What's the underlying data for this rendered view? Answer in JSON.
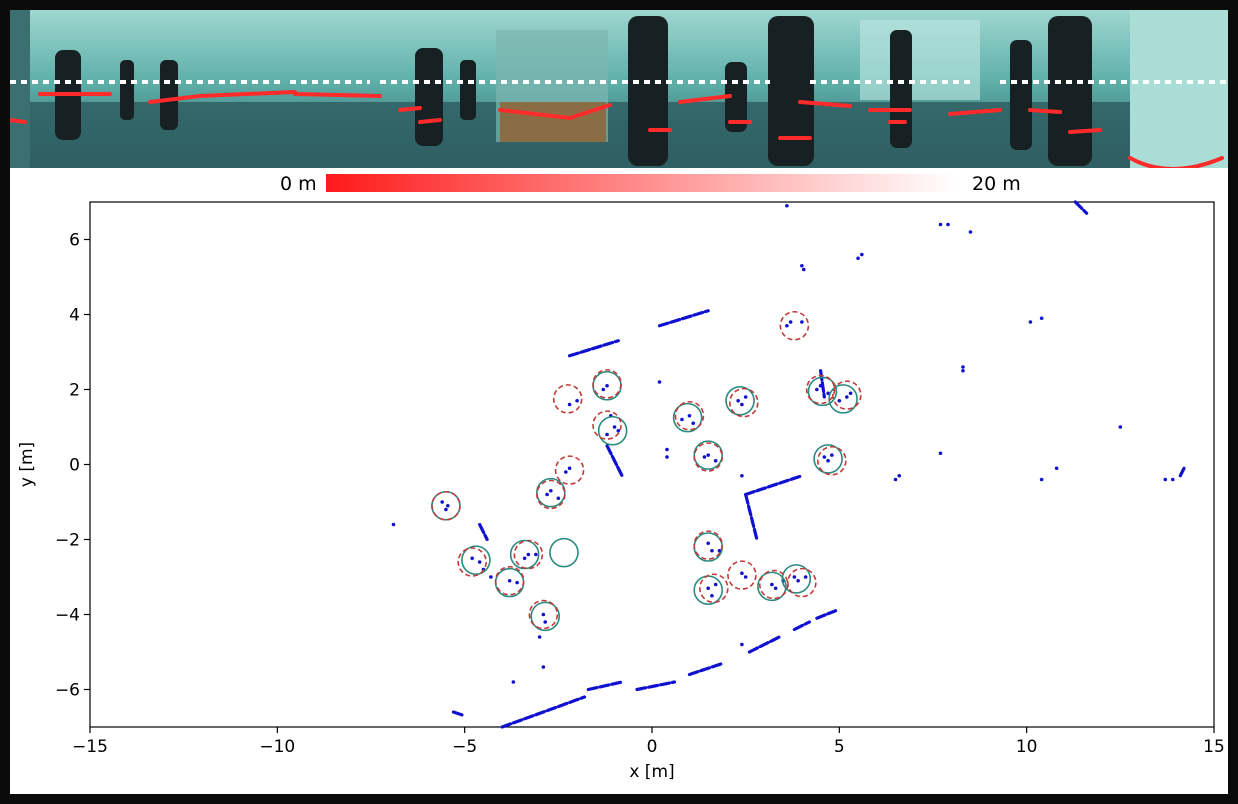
{
  "colorbar": {
    "min_label": "0 m",
    "max_label": "20 m",
    "color_near": "#ff1a1a",
    "color_far": "#ffffff"
  },
  "panorama": {
    "palette": {
      "sky": "#5fb3ad",
      "floor": "#2f6a6c",
      "person": "#1a1f22",
      "laser": "#ff2a2a",
      "dots": "#ffffff"
    },
    "icons": [
      "people",
      "laser-scan-overlay",
      "white-dot-line"
    ]
  },
  "chart_data": {
    "type": "scatter",
    "xlabel": "x [m]",
    "ylabel": "y [m]",
    "xlim": [
      -15,
      15
    ],
    "ylim": [
      -7,
      7
    ],
    "xticks": [
      -15,
      -10,
      -5,
      0,
      5,
      10,
      15
    ],
    "yticks": [
      -6,
      -4,
      -2,
      0,
      2,
      4,
      6
    ],
    "xtick_labels": [
      "−15",
      "−10",
      "−5",
      "0",
      "5",
      "10",
      "15"
    ],
    "ytick_labels": [
      "−6",
      "−4",
      "−2",
      "0",
      "2",
      "4",
      "6"
    ],
    "grid": false,
    "colors": {
      "points": "#1010d0",
      "detection": "#c23a3a",
      "track": "#2a8a80"
    },
    "point_segments": [
      [
        [
          -2.2,
          2.9
        ],
        [
          -0.9,
          3.3
        ]
      ],
      [
        [
          0.2,
          3.7
        ],
        [
          1.5,
          4.1
        ]
      ],
      [
        [
          -4.0,
          -7.0
        ],
        [
          -1.8,
          -6.2
        ]
      ],
      [
        [
          -1.7,
          -6.0
        ],
        [
          -0.8,
          -5.8
        ]
      ],
      [
        [
          -0.4,
          -6.0
        ],
        [
          0.6,
          -5.8
        ]
      ],
      [
        [
          1.0,
          -5.6
        ],
        [
          1.9,
          -5.3
        ]
      ],
      [
        [
          2.6,
          -5.0
        ],
        [
          3.4,
          -4.6
        ]
      ],
      [
        [
          3.8,
          -4.4
        ],
        [
          4.2,
          -4.2
        ]
      ],
      [
        [
          4.4,
          -4.1
        ],
        [
          4.9,
          -3.9
        ]
      ],
      [
        [
          2.5,
          -0.8
        ],
        [
          4.0,
          -0.3
        ]
      ],
      [
        [
          2.5,
          -0.8
        ],
        [
          2.8,
          -2.0
        ]
      ],
      [
        [
          -1.2,
          0.5
        ],
        [
          -0.8,
          -0.3
        ]
      ],
      [
        [
          4.5,
          2.5
        ],
        [
          4.6,
          1.8
        ]
      ],
      [
        [
          11.3,
          7.0
        ],
        [
          11.6,
          6.7
        ]
      ],
      [
        [
          14.1,
          -0.3
        ],
        [
          14.2,
          -0.1
        ]
      ],
      [
        [
          -5.3,
          -6.6
        ],
        [
          -5.0,
          -6.7
        ]
      ],
      [
        [
          -4.6,
          -1.6
        ],
        [
          -4.4,
          -2.0
        ]
      ]
    ],
    "points": [
      [
        -6.9,
        -1.6
      ],
      [
        -5.6,
        -1.0
      ],
      [
        -5.5,
        -1.2
      ],
      [
        -5.45,
        -1.1
      ],
      [
        -4.8,
        -2.5
      ],
      [
        -4.6,
        -2.6
      ],
      [
        -4.5,
        -2.8
      ],
      [
        -4.3,
        -3.0
      ],
      [
        -3.8,
        -3.1
      ],
      [
        -3.6,
        -3.15
      ],
      [
        -3.3,
        -2.4
      ],
      [
        -3.4,
        -2.5
      ],
      [
        -3.1,
        -2.4
      ],
      [
        -2.9,
        -4.0
      ],
      [
        -2.85,
        -4.2
      ],
      [
        -3.0,
        -4.6
      ],
      [
        -2.9,
        -5.4
      ],
      [
        -3.7,
        -5.8
      ],
      [
        -2.7,
        -0.7
      ],
      [
        -2.8,
        -0.8
      ],
      [
        -2.5,
        -0.9
      ],
      [
        -2.3,
        -0.2
      ],
      [
        -2.2,
        -0.1
      ],
      [
        -2.2,
        1.6
      ],
      [
        -2.0,
        1.7
      ],
      [
        -1.2,
        2.1
      ],
      [
        -1.3,
        2.0
      ],
      [
        -1.1,
        1.3
      ],
      [
        -1.0,
        1.0
      ],
      [
        -0.9,
        0.9
      ],
      [
        -1.2,
        0.8
      ],
      [
        0.2,
        2.2
      ],
      [
        0.4,
        0.4
      ],
      [
        0.4,
        0.2
      ],
      [
        0.8,
        1.2
      ],
      [
        1.0,
        1.3
      ],
      [
        1.1,
        1.1
      ],
      [
        1.4,
        0.2
      ],
      [
        1.5,
        0.25
      ],
      [
        1.7,
        0.1
      ],
      [
        2.3,
        1.7
      ],
      [
        2.4,
        1.6
      ],
      [
        2.5,
        1.8
      ],
      [
        2.4,
        -0.3
      ],
      [
        1.5,
        -2.1
      ],
      [
        1.6,
        -2.3
      ],
      [
        1.8,
        -2.3
      ],
      [
        1.5,
        -3.3
      ],
      [
        1.6,
        -3.5
      ],
      [
        1.7,
        -3.2
      ],
      [
        2.4,
        -2.9
      ],
      [
        2.5,
        -3.0
      ],
      [
        2.4,
        -4.8
      ],
      [
        3.2,
        -3.2
      ],
      [
        3.3,
        -3.3
      ],
      [
        3.5,
        -3.1
      ],
      [
        3.8,
        -3.0
      ],
      [
        3.9,
        -3.1
      ],
      [
        4.1,
        -3.0
      ],
      [
        3.6,
        3.7
      ],
      [
        3.7,
        3.8
      ],
      [
        4.0,
        3.8
      ],
      [
        3.6,
        6.9
      ],
      [
        4.0,
        5.3
      ],
      [
        4.05,
        5.2
      ],
      [
        4.4,
        2.0
      ],
      [
        4.5,
        2.1
      ],
      [
        4.7,
        1.9
      ],
      [
        4.6,
        0.2
      ],
      [
        4.7,
        0.1
      ],
      [
        4.8,
        0.25
      ],
      [
        5.0,
        1.7
      ],
      [
        5.2,
        1.8
      ],
      [
        5.3,
        1.9
      ],
      [
        5.6,
        5.6
      ],
      [
        5.5,
        5.5
      ],
      [
        6.5,
        -0.4
      ],
      [
        6.6,
        -0.3
      ],
      [
        7.7,
        6.4
      ],
      [
        7.9,
        6.4
      ],
      [
        7.7,
        0.3
      ],
      [
        8.5,
        6.2
      ],
      [
        8.3,
        2.6
      ],
      [
        8.3,
        2.5
      ],
      [
        10.1,
        3.8
      ],
      [
        10.4,
        3.9
      ],
      [
        10.4,
        -0.4
      ],
      [
        10.8,
        -0.1
      ],
      [
        12.5,
        1.0
      ],
      [
        13.7,
        -0.4
      ],
      [
        13.9,
        -0.4
      ]
    ],
    "detections": [
      [
        -5.5,
        -1.1
      ],
      [
        -4.8,
        -2.6
      ],
      [
        -3.8,
        -3.1
      ],
      [
        -3.3,
        -2.4
      ],
      [
        -2.9,
        -4.0
      ],
      [
        -2.7,
        -0.8
      ],
      [
        -2.2,
        -0.15
      ],
      [
        -2.25,
        1.75
      ],
      [
        -1.2,
        2.15
      ],
      [
        -1.2,
        1.05
      ],
      [
        1.0,
        1.3
      ],
      [
        1.5,
        0.2
      ],
      [
        2.45,
        1.65
      ],
      [
        1.5,
        -2.15
      ],
      [
        1.65,
        -3.3
      ],
      [
        2.4,
        -2.95
      ],
      [
        3.25,
        -3.2
      ],
      [
        4.0,
        -3.15
      ],
      [
        3.8,
        3.7
      ],
      [
        4.5,
        2.0
      ],
      [
        5.2,
        1.85
      ],
      [
        4.8,
        0.1
      ]
    ],
    "tracks": [
      [
        -5.5,
        -1.1
      ],
      [
        -4.7,
        -2.55
      ],
      [
        -3.8,
        -3.15
      ],
      [
        -3.4,
        -2.4
      ],
      [
        -2.35,
        -2.35
      ],
      [
        -2.85,
        -4.05
      ],
      [
        -2.7,
        -0.75
      ],
      [
        -1.2,
        2.1
      ],
      [
        -1.05,
        0.9
      ],
      [
        0.95,
        1.25
      ],
      [
        1.5,
        0.25
      ],
      [
        2.35,
        1.7
      ],
      [
        1.5,
        -2.2
      ],
      [
        1.5,
        -3.35
      ],
      [
        3.2,
        -3.25
      ],
      [
        3.85,
        -3.05
      ],
      [
        4.55,
        1.95
      ],
      [
        5.1,
        1.75
      ],
      [
        4.7,
        0.15
      ]
    ]
  }
}
